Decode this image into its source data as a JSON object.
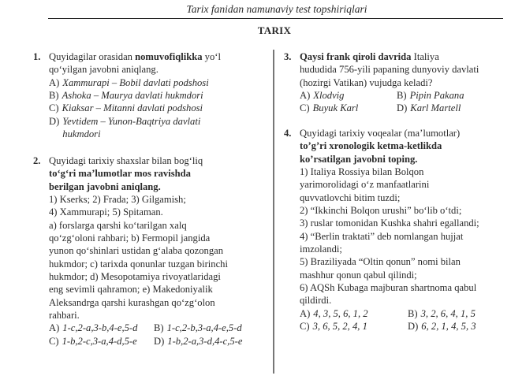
{
  "header": {
    "title": "Tarix fanidan namunaviy test topshiriqlari",
    "subject": "TARIX"
  },
  "questions": [
    {
      "num": "1.",
      "lines": [
        [
          {
            "t": "Quyidagilar orasidan ",
            "s": ""
          },
          {
            "t": "nomuvofiqlikka",
            "s": "b"
          },
          {
            "t": " yo‘l",
            "s": ""
          }
        ],
        [
          {
            "t": "qo‘yilgan javobni aniqlang.",
            "s": ""
          }
        ]
      ],
      "options": [
        {
          "label": "A)",
          "text": "Xammurapi – Bobil davlati podshosi"
        },
        {
          "label": "B)",
          "text": "Ashoka – Maurya davlati hukmdori"
        },
        {
          "label": "C)",
          "text": "Kiaksar – Mitanni davlati podshosi"
        },
        {
          "label": "D)",
          "text": "Yevtidem – Yunon-Baqtriya davlati hukmdori"
        }
      ]
    },
    {
      "num": "2.",
      "lines": [
        [
          {
            "t": "Quyidagi tarixiy shaxslar bilan bog‘liq",
            "s": ""
          }
        ],
        [
          {
            "t": "to‘g‘ri ma’lumotlar mos ravishda",
            "s": "b"
          }
        ],
        [
          {
            "t": "berilgan javobni aniqlang.",
            "s": "b"
          }
        ],
        [
          {
            "t": "1) Kserks; 2) Frada; 3) Gilgamish;",
            "s": ""
          }
        ],
        [
          {
            "t": "4) Xammurapi; 5) Spitaman.",
            "s": ""
          }
        ],
        [
          {
            "t": "a) forslarga qarshi ko‘tarilgan xalq",
            "s": ""
          }
        ],
        [
          {
            "t": "qo‘zg‘oloni rahbari; b) Fermopil jangida",
            "s": ""
          }
        ],
        [
          {
            "t": "yunon qo‘shinlari ustidan g‘alaba qozongan",
            "s": ""
          }
        ],
        [
          {
            "t": "hukmdor; c) tarixda qonunlar tuzgan birinchi",
            "s": ""
          }
        ],
        [
          {
            "t": "hukmdor; d) Mesopotamiya rivoyatlaridagi",
            "s": ""
          }
        ],
        [
          {
            "t": "eng sevimli qahramon; e) Makedoniyalik",
            "s": ""
          }
        ],
        [
          {
            "t": "Aleksandrga qarshi kurashgan qo‘zg‘olon",
            "s": ""
          }
        ],
        [
          {
            "t": "rahbari.",
            "s": ""
          }
        ]
      ],
      "options": [
        {
          "label": "A)",
          "text": "1-c,2-a,3-b,4-e,5-d"
        },
        {
          "label": "B)",
          "text": "1-c,2-b,3-a,4-e,5-d"
        },
        {
          "label": "C)",
          "text": "1-b,2-c,3-a,4-d,5-e"
        },
        {
          "label": "D)",
          "text": "1-b,2-a,3-d,4-c,5-e"
        }
      ]
    },
    {
      "num": "3.",
      "lines": [
        [
          {
            "t": "Qaysi frank qiroli davrida",
            "s": "b"
          },
          {
            "t": " Italiya",
            "s": ""
          }
        ],
        [
          {
            "t": "hududida 756-yili papaning dunyoviy davlati",
            "s": ""
          }
        ],
        [
          {
            "t": "(hozirgi Vatikan) vujudga keladi?",
            "s": ""
          }
        ]
      ],
      "options": [
        {
          "label": "A)",
          "text": "Xlodvig"
        },
        {
          "label": "B)",
          "text": "Pipin Pakana"
        },
        {
          "label": "C)",
          "text": "Buyuk Karl"
        },
        {
          "label": "D)",
          "text": "Karl Martell"
        }
      ]
    },
    {
      "num": "4.",
      "lines": [
        [
          {
            "t": "Quyidagi tarixiy voqealar (ma’lumotlar)",
            "s": ""
          }
        ],
        [
          {
            "t": "to’g’ri xronologik ketma-ketlikda",
            "s": "b"
          }
        ],
        [
          {
            "t": "ko’rsatilgan javobni toping.",
            "s": "b"
          }
        ],
        [
          {
            "t": "1) Italiya Rossiya bilan Bolqon",
            "s": ""
          }
        ],
        [
          {
            "t": "yarimorolidagi o‘z manfaatlarini",
            "s": ""
          }
        ],
        [
          {
            "t": "quvvatlovchi bitim tuzdi;",
            "s": ""
          }
        ],
        [
          {
            "t": "2) “Ikkinchi Bolqon urushi” bo‘lib o‘tdi;",
            "s": ""
          }
        ],
        [
          {
            "t": "3) ruslar tomonidan Kushka shahri egallandi;",
            "s": ""
          }
        ],
        [
          {
            "t": "4) “Berlin traktati” deb nomlangan hujjat",
            "s": ""
          }
        ],
        [
          {
            "t": "imzolandi;",
            "s": ""
          }
        ],
        [
          {
            "t": "5) Braziliyada “Oltin qonun” nomi bilan",
            "s": ""
          }
        ],
        [
          {
            "t": "mashhur qonun qabul qilindi;",
            "s": ""
          }
        ],
        [
          {
            "t": "6) AQSh Kubaga majburan shartnoma qabul",
            "s": ""
          }
        ],
        [
          {
            "t": "qildirdi.",
            "s": ""
          }
        ]
      ],
      "options": [
        {
          "label": "A)",
          "text": "4, 3, 5, 6, 1, 2"
        },
        {
          "label": "B)",
          "text": "3, 2, 6, 4, 1, 5"
        },
        {
          "label": "C)",
          "text": "3, 6, 5, 2, 4, 1"
        },
        {
          "label": "D)",
          "text": "6, 2, 1, 4, 5, 3"
        }
      ]
    }
  ]
}
